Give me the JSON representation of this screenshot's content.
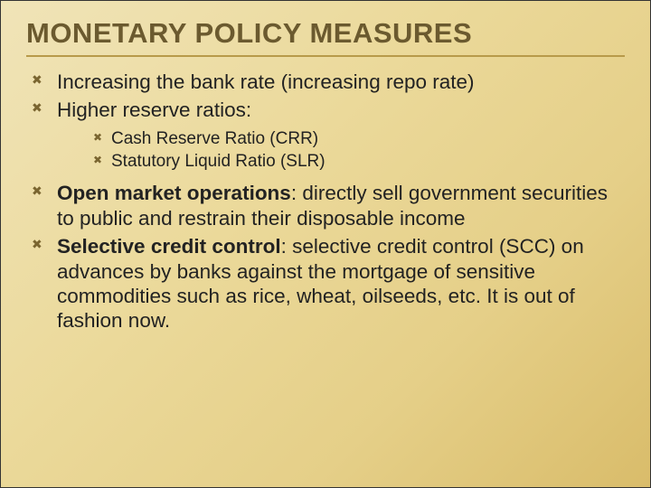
{
  "slide": {
    "title": "MONETARY POLICY MEASURES",
    "title_color": "#6b5a2f",
    "title_fontsize": 31,
    "underline_color": "#b89a4a",
    "bullet_marker": "✖",
    "bullet_color": "#7a6530",
    "body_fontsize": 22.5,
    "sub_fontsize": 19,
    "background_gradient": [
      "#f0e4b8",
      "#ebd99a",
      "#e5cf88",
      "#d9bc6a"
    ],
    "items": [
      {
        "text": "Increasing the bank rate (increasing repo rate)"
      },
      {
        "text": "Higher reserve ratios:",
        "sub": [
          "Cash Reserve Ratio (CRR)",
          "Statutory Liquid Ratio (SLR)"
        ]
      },
      {
        "bold": "Open market operations",
        "rest": ": directly sell government securities to public and restrain their disposable income"
      },
      {
        "bold": "Selective credit control",
        "rest": ": selective credit control (SCC) on advances by banks against the mortgage of sensitive commodities such as rice, wheat, oilseeds, etc. It is out of fashion now."
      }
    ]
  }
}
